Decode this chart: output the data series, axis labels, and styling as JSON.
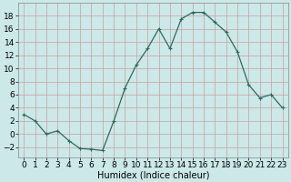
{
  "x": [
    0,
    1,
    2,
    3,
    4,
    5,
    6,
    7,
    8,
    9,
    10,
    11,
    12,
    13,
    14,
    15,
    16,
    17,
    18,
    19,
    20,
    21,
    22,
    23
  ],
  "y": [
    3,
    2,
    0,
    0.5,
    -1,
    -2.2,
    -2.3,
    -2.5,
    2,
    7,
    10.5,
    13,
    16,
    13,
    17.5,
    18.5,
    18.5,
    17,
    15.5,
    12.5,
    7.5,
    5.5,
    6,
    4
  ],
  "line_color": "#2d6b5e",
  "marker": "+",
  "marker_size": 3,
  "marker_linewidth": 0.8,
  "line_width": 0.9,
  "bg_color": "#cce8e8",
  "grid_color": "#c8a0a0",
  "xlabel": "Humidex (Indice chaleur)",
  "ylim": [
    -3.5,
    20
  ],
  "xlim": [
    -0.5,
    23.5
  ],
  "yticks": [
    -2,
    0,
    2,
    4,
    6,
    8,
    10,
    12,
    14,
    16,
    18
  ],
  "xticks": [
    0,
    1,
    2,
    3,
    4,
    5,
    6,
    7,
    8,
    9,
    10,
    11,
    12,
    13,
    14,
    15,
    16,
    17,
    18,
    19,
    20,
    21,
    22,
    23
  ],
  "xlabel_fontsize": 7,
  "tick_fontsize": 6.5
}
